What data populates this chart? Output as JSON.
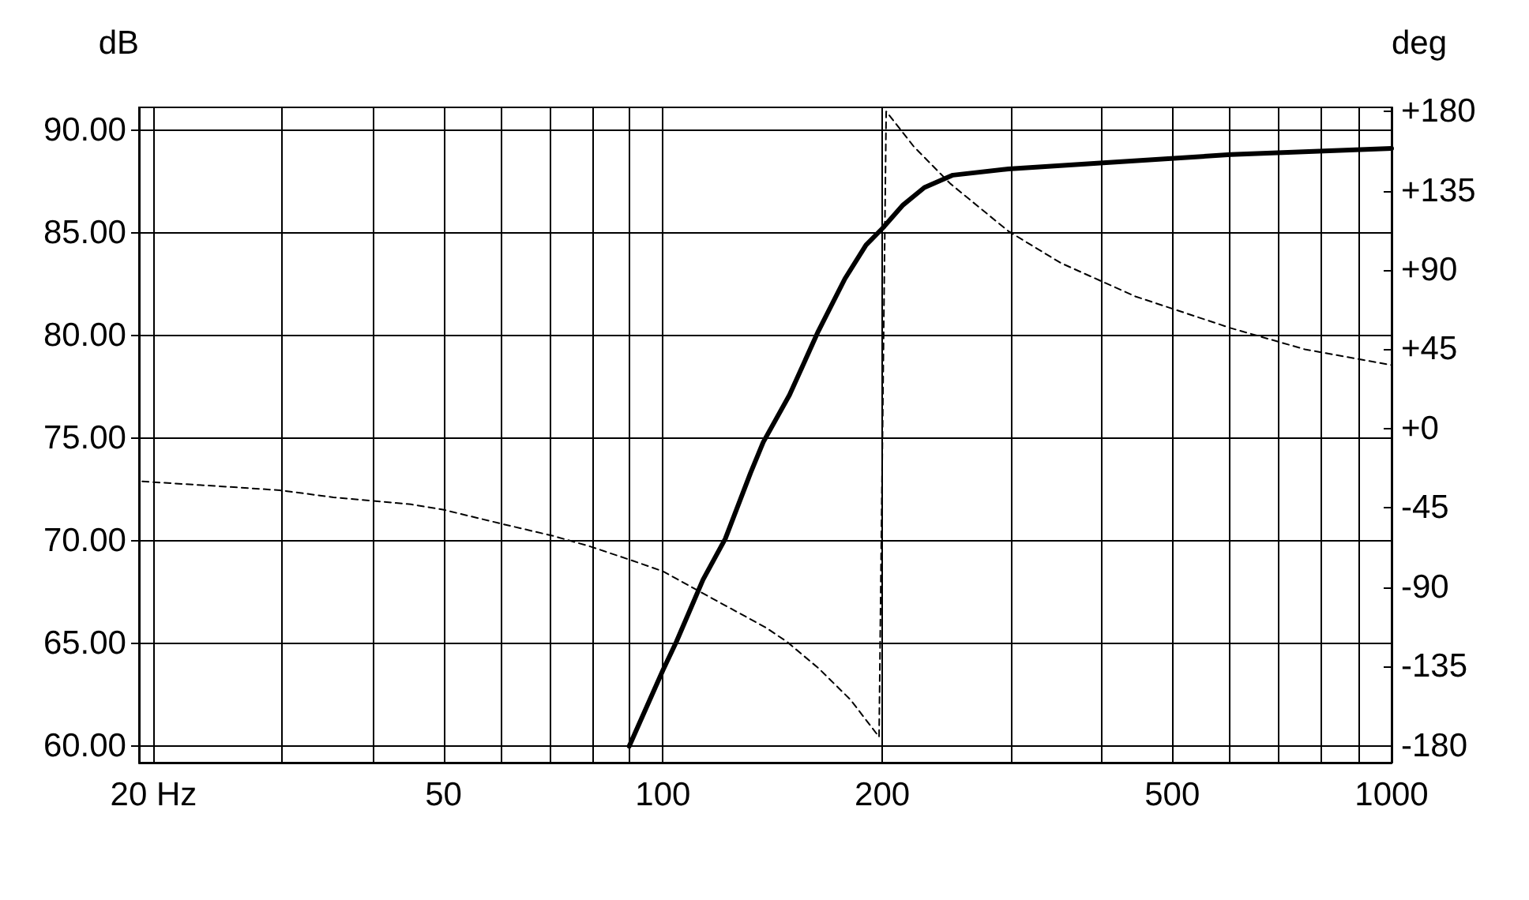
{
  "chart_data": {
    "type": "line",
    "ylabel": "dB",
    "y2label": "deg",
    "xlim": [
      19.1,
      1000
    ],
    "log": "x",
    "xticks": [
      {
        "value": 20,
        "label": "20 Hz"
      },
      {
        "value": 30,
        "label": null
      },
      {
        "value": 40,
        "label": null
      },
      50,
      {
        "value": 60,
        "label": null
      },
      {
        "value": 70,
        "label": null
      },
      {
        "value": 80,
        "label": null
      },
      {
        "value": 90,
        "label": null
      },
      100,
      200,
      {
        "value": 300,
        "label": null
      },
      {
        "value": 400,
        "label": null
      },
      500,
      {
        "value": 600,
        "label": null
      },
      {
        "value": 700,
        "label": null
      },
      {
        "value": 800,
        "label": null
      },
      {
        "value": 900,
        "label": null
      },
      1000
    ],
    "ylim": [
      59.2,
      91.1
    ],
    "yticks": [
      {
        "value": 60,
        "label": "60.00"
      },
      {
        "value": 65,
        "label": "65.00"
      },
      {
        "value": 70,
        "label": "70.00"
      },
      {
        "value": 75,
        "label": "75.00"
      },
      {
        "value": 80,
        "label": "80.00"
      },
      {
        "value": 85,
        "label": "85.00"
      },
      {
        "value": 90,
        "label": "90.00"
      }
    ],
    "y2lim": [
      -189.6,
      182.3
    ],
    "y2ticks": [
      {
        "value": -180,
        "label": "-180"
      },
      {
        "value": -135,
        "label": "-135"
      },
      {
        "value": -90,
        "label": "-90"
      },
      {
        "value": -45,
        "label": "-45"
      },
      {
        "value": 0,
        "label": "+0"
      },
      {
        "value": 45,
        "label": "+45"
      },
      {
        "value": 90,
        "label": "+90"
      },
      {
        "value": 135,
        "label": "+135"
      },
      {
        "value": 180,
        "label": "+180"
      }
    ],
    "grid": true,
    "marker": "none",
    "series": [
      {
        "color": "#000000",
        "line_style": "solid",
        "x": [
          89.9,
          100,
          104.4,
          113.5,
          121.8,
          131.9,
          137.3,
          149.2,
          163.4,
          177.7,
          190,
          200,
          213.6,
          228.5,
          250,
          298,
          402,
          602,
          1000
        ],
        "values": [
          60.0,
          63.7,
          65.1,
          68.1,
          70.1,
          73.3,
          74.8,
          77.1,
          80.2,
          82.75,
          84.4,
          85.2,
          86.35,
          87.2,
          87.8,
          88.1,
          88.4,
          88.8,
          89.1
        ]
      },
      {
        "color": "#000000",
        "line_style": "dashed",
        "axis": "y2",
        "x": [
          19.3,
          25.2,
          29.8,
          35.3,
          45.1,
          49.9,
          60,
          70.8,
          79.6,
          90.9,
          100,
          112.9,
          138.5,
          148,
          163.5,
          181,
          198,
          202.5,
          221,
          248,
          298,
          351.5,
          445,
          602,
          760,
          1000
        ],
        "values": [
          -30,
          -33,
          -35,
          -39,
          -43,
          -46,
          -54,
          -61,
          -67,
          -75,
          -81,
          -93,
          -113,
          -121,
          -136,
          -154,
          -175,
          180,
          160,
          139,
          112,
          94,
          75,
          57,
          45,
          36
        ]
      }
    ]
  }
}
